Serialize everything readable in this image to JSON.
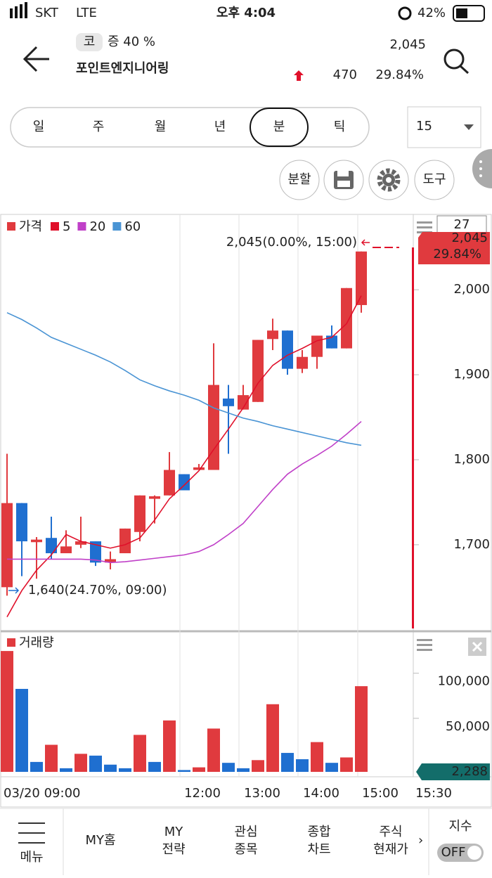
{
  "status_bar": {
    "carrier": "SKT",
    "network": "LTE",
    "time": "오후 4:04",
    "battery": "42%"
  },
  "header": {
    "market_badge": "코",
    "margin": "증 40 %",
    "name": "포인트엔지니어링",
    "price": "2,045",
    "change": "470",
    "change_pct": "29.84%"
  },
  "period_tabs": [
    "일",
    "주",
    "월",
    "년",
    "분",
    "틱"
  ],
  "selected_tab": 4,
  "interval": "15",
  "tools": [
    "분할",
    "도구"
  ],
  "price_chart": {
    "type": "candlestick",
    "legend_label": "가격",
    "up_color": "#e03a3e",
    "down_color": "#1f6fd0",
    "open": [
      1650,
      1749,
      1703,
      1708,
      1690,
      1700,
      1704,
      1679,
      1690,
      1715,
      1754,
      1758,
      1783,
      1788,
      1788,
      1872,
      1859,
      1868,
      1942,
      1952,
      1907,
      1921,
      1946,
      1931,
      1982
    ],
    "high": [
      1807,
      1749,
      1709,
      1733,
      1717,
      1733,
      1704,
      1692,
      1719,
      1758,
      1758,
      1809,
      1783,
      1795,
      1937,
      1888,
      1888,
      1941,
      1966,
      1952,
      1929,
      1946,
      1958,
      2002,
      2045
    ],
    "low": [
      1640,
      1663,
      1660,
      1683,
      1690,
      1696,
      1675,
      1671,
      1690,
      1704,
      1725,
      1758,
      1764,
      1788,
      1788,
      1807,
      1859,
      1868,
      1929,
      1900,
      1902,
      1907,
      1931,
      1931,
      1973
    ],
    "close": [
      1749,
      1704,
      1706,
      1690,
      1698,
      1704,
      1679,
      1683,
      1719,
      1758,
      1757,
      1788,
      1764,
      1791,
      1888,
      1863,
      1876,
      1941,
      1952,
      1907,
      1921,
      1946,
      1931,
      2002,
      2045
    ],
    "series": [
      {
        "name": "5",
        "color": "#e0102a",
        "values": [
          1615,
          1646,
          1670,
          1688,
          1712,
          1704,
          1700,
          1696,
          1700,
          1708,
          1729,
          1754,
          1770,
          1787,
          1812,
          1836,
          1861,
          1890,
          1911,
          1923,
          1931,
          1940,
          1944,
          1960,
          1993
        ]
      },
      {
        "name": "20",
        "color": "#c040c8",
        "values": [
          1683,
          1683,
          1683,
          1683,
          1683,
          1683,
          1682,
          1679,
          1680,
          1682,
          1684,
          1686,
          1688,
          1692,
          1700,
          1712,
          1725,
          1745,
          1765,
          1783,
          1795,
          1805,
          1816,
          1830,
          1845
        ]
      },
      {
        "name": "60",
        "color": "#4a94d4",
        "values": [
          1973,
          1965,
          1955,
          1944,
          1937,
          1930,
          1923,
          1915,
          1905,
          1894,
          1887,
          1881,
          1876,
          1870,
          1861,
          1855,
          1849,
          1845,
          1840,
          1836,
          1832,
          1828,
          1824,
          1820,
          1817
        ]
      }
    ],
    "ylim": [
      1599,
      2087
    ],
    "yticks": [
      {
        "value": 1700,
        "label": "1,700"
      },
      {
        "value": 1800,
        "label": "1,800"
      },
      {
        "value": 1900,
        "label": "1,900"
      },
      {
        "value": 2000,
        "label": "2,000"
      }
    ],
    "annotations": [
      "2,045(0.00%, 15:00)",
      "1,640(24.70%, 09:00)"
    ],
    "last_tag": {
      "count": "27",
      "price": "2,045",
      "pct": "29.84%"
    }
  },
  "volume_chart": {
    "type": "bar",
    "legend_label": "거래량",
    "values": [
      134000,
      92000,
      11000,
      30000,
      4000,
      20000,
      18000,
      8000,
      4000,
      41000,
      11000,
      57000,
      2000,
      5000,
      48000,
      10000,
      4000,
      13000,
      75000,
      21000,
      14000,
      33000,
      10000,
      16000,
      95000
    ],
    "colors": [
      "#e03a3e",
      "#1f6fd0",
      "#1f6fd0",
      "#e03a3e",
      "#1f6fd0",
      "#e03a3e",
      "#1f6fd0",
      "#1f6fd0",
      "#1f6fd0",
      "#e03a3e",
      "#1f6fd0",
      "#e03a3e",
      "#1f6fd0",
      "#e03a3e",
      "#e03a3e",
      "#1f6fd0",
      "#1f6fd0",
      "#e03a3e",
      "#e03a3e",
      "#1f6fd0",
      "#1f6fd0",
      "#e03a3e",
      "#1f6fd0",
      "#e03a3e",
      "#e03a3e"
    ],
    "ylim": [
      0,
      152000
    ],
    "yticks": [
      {
        "value": 50000,
        "label": "50,000"
      },
      {
        "value": 100000,
        "label": "100,000"
      }
    ],
    "last_tag": "2,288"
  },
  "time_axis": [
    "03/20 09:00",
    "12:00",
    "13:00",
    "14:00",
    "15:00",
    "15:30"
  ],
  "nav": {
    "menu": "메뉴",
    "items": [
      [
        "MY홈"
      ],
      [
        "MY",
        "전략"
      ],
      [
        "관심",
        "종목"
      ],
      [
        "종합",
        "차트"
      ],
      [
        "주식",
        "현재가"
      ]
    ],
    "index": "지수",
    "toggle": "OFF"
  }
}
